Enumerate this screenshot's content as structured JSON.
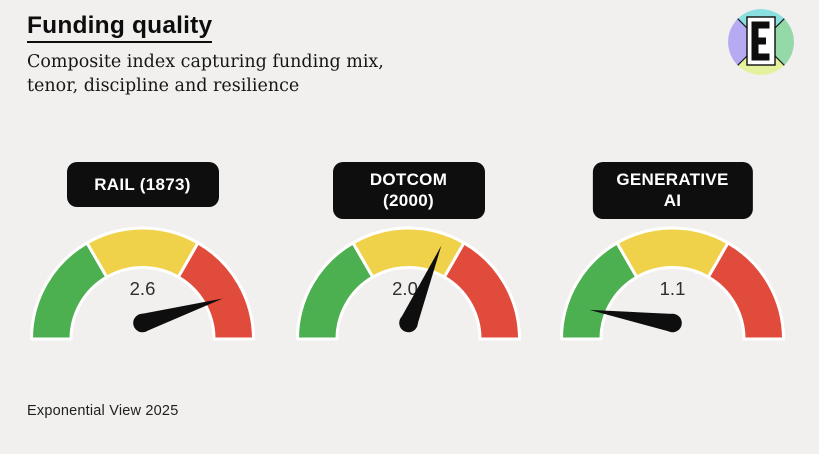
{
  "header": {
    "title": "Funding quality",
    "subtitle_line1": "Composite index capturing funding mix,",
    "subtitle_line2": "tenor, discipline and resilience"
  },
  "footer": {
    "credit": "Exponential View 2025"
  },
  "logo": {
    "name": "exponential-view-logo",
    "letter": "E",
    "colors": {
      "top": "#8adfe1",
      "right": "#96d9a8",
      "bottom": "#e4f29d",
      "left": "#b6abf2",
      "line": "#1a1a1a",
      "panel": "#ffffff",
      "letter": "#0d0d0d"
    }
  },
  "chart_data": {
    "type": "gauge",
    "title": "Funding quality",
    "subtitle": "Composite index capturing funding mix, tenor, discipline and resilience",
    "layout": "three semicircular dial gauges in a row, needle value printed above pivot",
    "segments": [
      {
        "zone": "good",
        "color_key": "green",
        "arc_deg_from": 180,
        "arc_deg_to": 120
      },
      {
        "zone": "caution",
        "color_key": "yellow",
        "arc_deg_from": 120,
        "arc_deg_to": 60
      },
      {
        "zone": "poor",
        "color_key": "red",
        "arc_deg_from": 60,
        "arc_deg_to": 0
      }
    ],
    "gauges": [
      {
        "label": "RAIL (1873)",
        "value": "2.6",
        "needle_angle_deg": 17,
        "needle_zone": "red"
      },
      {
        "label": "DOTCOM (2000)",
        "value": "2.0",
        "needle_angle_deg": 67,
        "needle_zone": "yellow"
      },
      {
        "label": "GENERATIVE\nAI",
        "value": "1.1",
        "needle_angle_deg": 171,
        "needle_zone": "green"
      }
    ],
    "colors": {
      "green": "#4caf50",
      "yellow": "#f0d24a",
      "red": "#e04b3c",
      "needle": "#0e0e0e",
      "pill_bg": "#0e0e0e",
      "pill_text": "#ffffff",
      "background": "#f1f0ef"
    }
  }
}
